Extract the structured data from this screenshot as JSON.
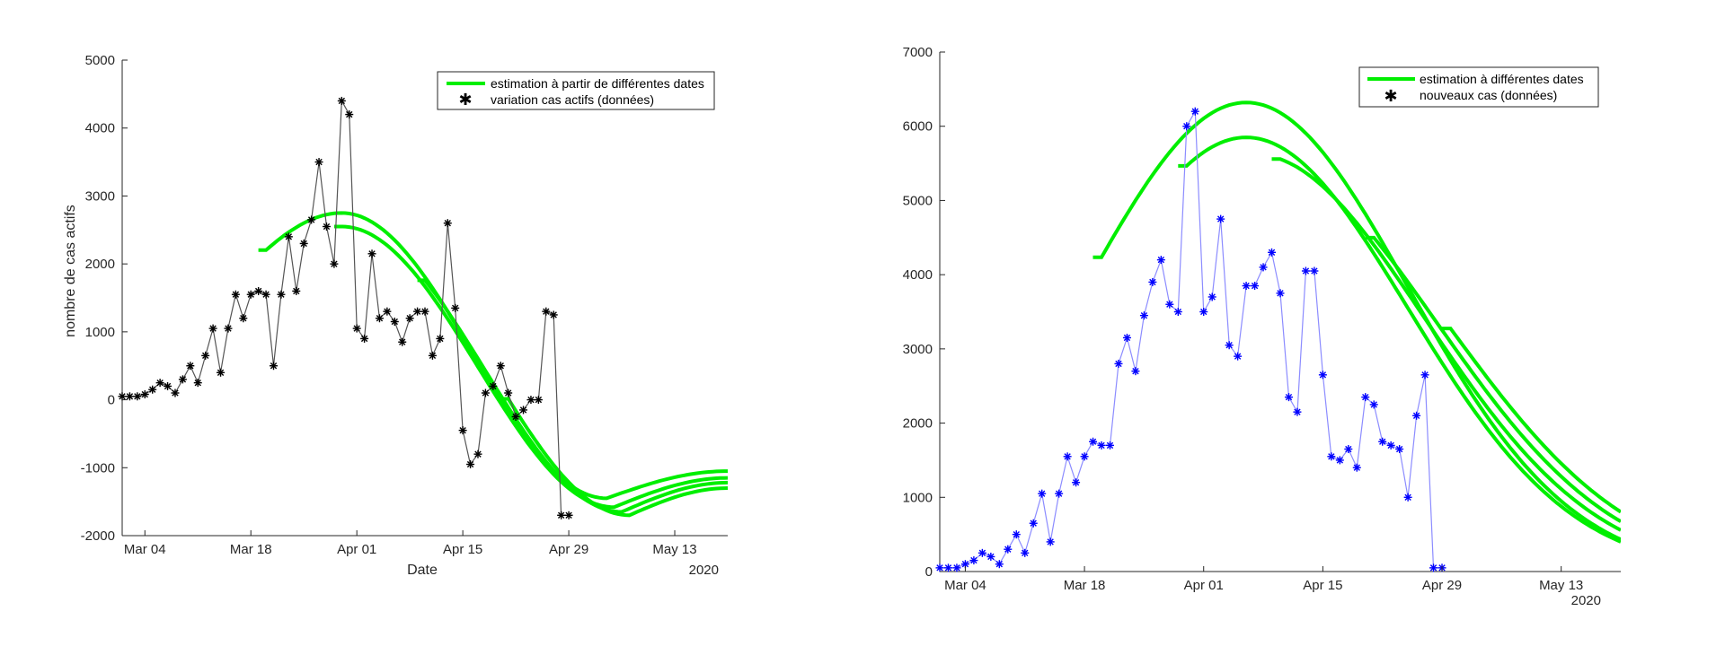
{
  "chart_data": [
    {
      "type": "line",
      "xlabel": "Date",
      "ylabel": "nombre de cas actifs",
      "year_label": "2020",
      "xlim": [
        "2020-03-01",
        "2020-05-20"
      ],
      "ylim": [
        -2000,
        5000
      ],
      "x_ticks": [
        {
          "date": "2020-03-04",
          "label": "Mar 04"
        },
        {
          "date": "2020-03-18",
          "label": "Mar 18"
        },
        {
          "date": "2020-04-01",
          "label": "Apr 01"
        },
        {
          "date": "2020-04-15",
          "label": "Apr 15"
        },
        {
          "date": "2020-04-29",
          "label": "Apr 29"
        },
        {
          "date": "2020-05-13",
          "label": "May 13"
        }
      ],
      "y_ticks": [
        -2000,
        -1000,
        0,
        1000,
        2000,
        3000,
        4000,
        5000
      ],
      "grid": false,
      "legend_position": "top-right",
      "data_series": {
        "name": "variation cas actifs (données)",
        "color": "#000000",
        "line_color": "#555555",
        "marker": "asterisk",
        "start_date": "2020-03-01",
        "values": [
          50,
          50,
          50,
          80,
          150,
          250,
          200,
          100,
          300,
          500,
          250,
          650,
          1050,
          400,
          1050,
          1550,
          1200,
          1550,
          1600,
          1550,
          500,
          1550,
          2400,
          1600,
          2300,
          2650,
          3500,
          2550,
          2000,
          4400,
          4200,
          1050,
          900,
          2150,
          1200,
          1300,
          1150,
          850,
          1200,
          1300,
          1300,
          650,
          900,
          2600,
          1350,
          -450,
          -950,
          -800,
          100,
          200,
          500,
          100,
          -250,
          -150,
          0,
          0,
          1300,
          1250,
          -1700,
          -1700
        ]
      },
      "estimate_label": "estimation à partir de différentes dates",
      "estimate_color": "#00ee00",
      "estimates": [
        {
          "start_date": "2020-03-20",
          "peak_date": "2020-03-30",
          "peak": 2750,
          "sigma": 15,
          "trough_date": "2020-05-04",
          "trough": -1450,
          "end_value": -1050
        },
        {
          "start_date": "2020-03-30",
          "peak_date": "2020-03-30",
          "peak": 2550,
          "sigma": 15,
          "trough_date": "2020-05-05",
          "trough": -1580,
          "end_value": -1150
        },
        {
          "start_date": "2020-04-10",
          "peak_date": "2020-03-31",
          "peak": 2500,
          "sigma": 16,
          "trough_date": "2020-05-06",
          "trough": -1650,
          "end_value": -1220
        },
        {
          "start_date": "2020-04-21",
          "peak_date": "2020-04-01",
          "peak": 2450,
          "sigma": 16,
          "trough_date": "2020-05-07",
          "trough": -1700,
          "end_value": -1300
        }
      ]
    },
    {
      "type": "line",
      "xlabel": "",
      "ylabel": "",
      "year_label": "2020",
      "xlim": [
        "2020-03-01",
        "2020-05-20"
      ],
      "ylim": [
        0,
        7000
      ],
      "x_ticks": [
        {
          "date": "2020-03-04",
          "label": "Mar 04"
        },
        {
          "date": "2020-03-18",
          "label": "Mar 18"
        },
        {
          "date": "2020-04-01",
          "label": "Apr 01"
        },
        {
          "date": "2020-04-15",
          "label": "Apr 15"
        },
        {
          "date": "2020-04-29",
          "label": "Apr 29"
        },
        {
          "date": "2020-05-13",
          "label": "May 13"
        }
      ],
      "y_ticks": [
        0,
        1000,
        2000,
        3000,
        4000,
        5000,
        6000,
        7000
      ],
      "grid": false,
      "legend_position": "top-right",
      "data_series": {
        "name": "nouveaux cas (données)",
        "color": "#0000ff",
        "line_color": "#8c8cff",
        "marker": "asterisk",
        "start_date": "2020-03-01",
        "values": [
          50,
          50,
          50,
          100,
          150,
          250,
          200,
          100,
          300,
          500,
          250,
          650,
          1050,
          400,
          1050,
          1550,
          1200,
          1550,
          1750,
          1700,
          1700,
          2800,
          3150,
          2700,
          3450,
          3900,
          4200,
          3600,
          3500,
          6000,
          6200,
          3500,
          3700,
          4750,
          3050,
          2900,
          3850,
          3850,
          4100,
          4300,
          3750,
          2350,
          2150,
          4050,
          4050,
          2650,
          1550,
          1500,
          1650,
          1400,
          2350,
          2250,
          1750,
          1700,
          1650,
          1000,
          2100,
          2650,
          50,
          50
        ]
      },
      "estimate_label": "estimation à différentes dates",
      "estimate_color": "#00ee00",
      "estimates": [
        {
          "start_date": "2020-03-20",
          "peak_date": "2020-04-06",
          "peak": 6320,
          "sigma": 19
        },
        {
          "start_date": "2020-03-30",
          "peak_date": "2020-04-06",
          "peak": 5850,
          "sigma": 19
        },
        {
          "start_date": "2020-04-10",
          "peak_date": "2020-04-07",
          "peak": 5620,
          "sigma": 20
        },
        {
          "start_date": "2020-04-21",
          "peak_date": "2020-04-08",
          "peak": 5500,
          "sigma": 20.5
        },
        {
          "start_date": "2020-04-30",
          "peak_date": "2020-04-09",
          "peak": 5400,
          "sigma": 21
        }
      ]
    }
  ]
}
